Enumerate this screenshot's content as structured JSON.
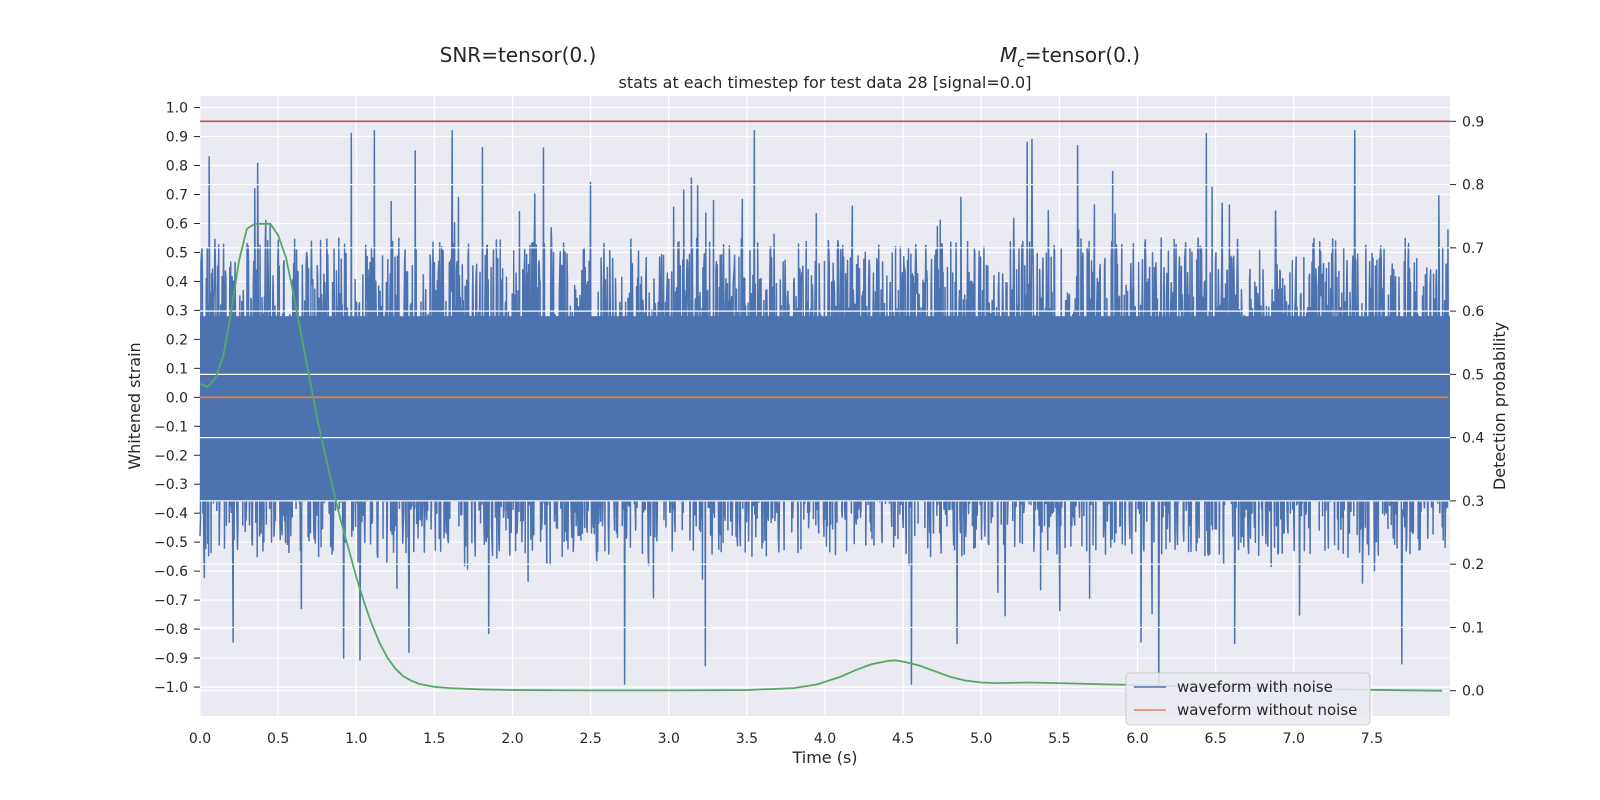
{
  "chart_data": {
    "type": "line",
    "top_titles": {
      "left": "SNR=tensor(0.)",
      "right_symbol": "M",
      "right_subscript": "c",
      "right_rest": "=tensor(0.)"
    },
    "title": "stats at each timestep for test data 28 [signal=0.0]",
    "xlabel": "Time (s)",
    "ylabel_left": "Whitened strain",
    "ylabel_right": "Detection probability",
    "xlim": [
      0.0,
      8.0
    ],
    "ylim_left": [
      -1.1,
      1.04
    ],
    "ylim_right": [
      -0.04,
      0.94
    ],
    "x_ticks": [
      "0.0",
      "0.5",
      "1.0",
      "1.5",
      "2.0",
      "2.5",
      "3.0",
      "3.5",
      "4.0",
      "4.5",
      "5.0",
      "5.5",
      "6.0",
      "6.5",
      "7.0",
      "7.5"
    ],
    "y_left_ticks": [
      "1.0",
      "0.9",
      "0.8",
      "0.7",
      "0.6",
      "0.5",
      "0.4",
      "0.3",
      "0.2",
      "0.1",
      "0.0",
      "−0.1",
      "−0.2",
      "−0.3",
      "−0.4",
      "−0.5",
      "−0.6",
      "−0.7",
      "−0.8",
      "−0.9",
      "−1.0"
    ],
    "y_right_ticks": [
      "0.9",
      "0.8",
      "0.7",
      "0.6",
      "0.5",
      "0.4",
      "0.3",
      "0.2",
      "0.1",
      "0.0"
    ],
    "threshold": {
      "value": 0.9,
      "axis": "right",
      "color": "#c44e52"
    },
    "series": [
      {
        "name": "waveform with noise",
        "axis": "left",
        "color": "#4c72b0",
        "style": "noise",
        "envelope": {
          "mean_amplitude": 0.47,
          "max": 0.92,
          "min": -0.99
        },
        "notable_spikes": [
          {
            "x": 0.06,
            "y": 0.83
          },
          {
            "x": 0.35,
            "y": 0.72
          },
          {
            "x": 0.92,
            "y": -0.9
          },
          {
            "x": 1.38,
            "y": 0.85
          },
          {
            "x": 1.34,
            "y": -0.88
          },
          {
            "x": 2.2,
            "y": 0.86
          },
          {
            "x": 2.72,
            "y": -0.99
          },
          {
            "x": 4.85,
            "y": -0.85
          },
          {
            "x": 5.3,
            "y": 0.88
          },
          {
            "x": 6.45,
            "y": 0.91
          },
          {
            "x": 6.63,
            "y": -0.85
          },
          {
            "x": 7.4,
            "y": 0.92
          },
          {
            "x": 7.7,
            "y": -0.92
          }
        ]
      },
      {
        "name": "waveform without noise",
        "axis": "left",
        "color": "#dd8452",
        "x": [
          0.0,
          7.99
        ],
        "y": [
          0.0,
          0.0
        ]
      },
      {
        "name": "detection probability",
        "axis": "right",
        "color": "#55a868",
        "x": [
          0.0,
          0.05,
          0.1,
          0.15,
          0.2,
          0.25,
          0.3,
          0.35,
          0.4,
          0.45,
          0.5,
          0.55,
          0.6,
          0.65,
          0.7,
          0.75,
          0.8,
          0.85,
          0.9,
          0.95,
          1.0,
          1.05,
          1.1,
          1.15,
          1.2,
          1.25,
          1.3,
          1.35,
          1.4,
          1.5,
          1.6,
          1.8,
          2.0,
          2.5,
          3.0,
          3.5,
          3.8,
          3.95,
          4.1,
          4.2,
          4.3,
          4.4,
          4.45,
          4.5,
          4.6,
          4.7,
          4.8,
          4.9,
          5.0,
          5.1,
          5.3,
          5.5,
          5.8,
          6.0,
          6.3,
          6.6,
          7.0,
          7.3,
          7.6,
          7.95
        ],
        "y": [
          0.485,
          0.48,
          0.495,
          0.53,
          0.6,
          0.68,
          0.73,
          0.738,
          0.738,
          0.738,
          0.72,
          0.685,
          0.625,
          0.56,
          0.495,
          0.43,
          0.375,
          0.32,
          0.27,
          0.225,
          0.18,
          0.14,
          0.105,
          0.075,
          0.052,
          0.035,
          0.023,
          0.016,
          0.011,
          0.006,
          0.004,
          0.002,
          0.001,
          0.0005,
          0.0005,
          0.001,
          0.004,
          0.01,
          0.022,
          0.033,
          0.042,
          0.047,
          0.048,
          0.046,
          0.04,
          0.031,
          0.022,
          0.016,
          0.013,
          0.012,
          0.013,
          0.012,
          0.01,
          0.009,
          0.007,
          0.005,
          0.003,
          0.002,
          0.001,
          0.0
        ]
      }
    ],
    "legend": {
      "position": "lower-right",
      "entries": [
        {
          "label": "waveform with noise",
          "color": "#4c72b0"
        },
        {
          "label": "waveform without noise",
          "color": "#dd8452"
        }
      ]
    },
    "style": {
      "background": "#eaeaf2",
      "grid": true,
      "grid_color": "#ffffff"
    }
  }
}
